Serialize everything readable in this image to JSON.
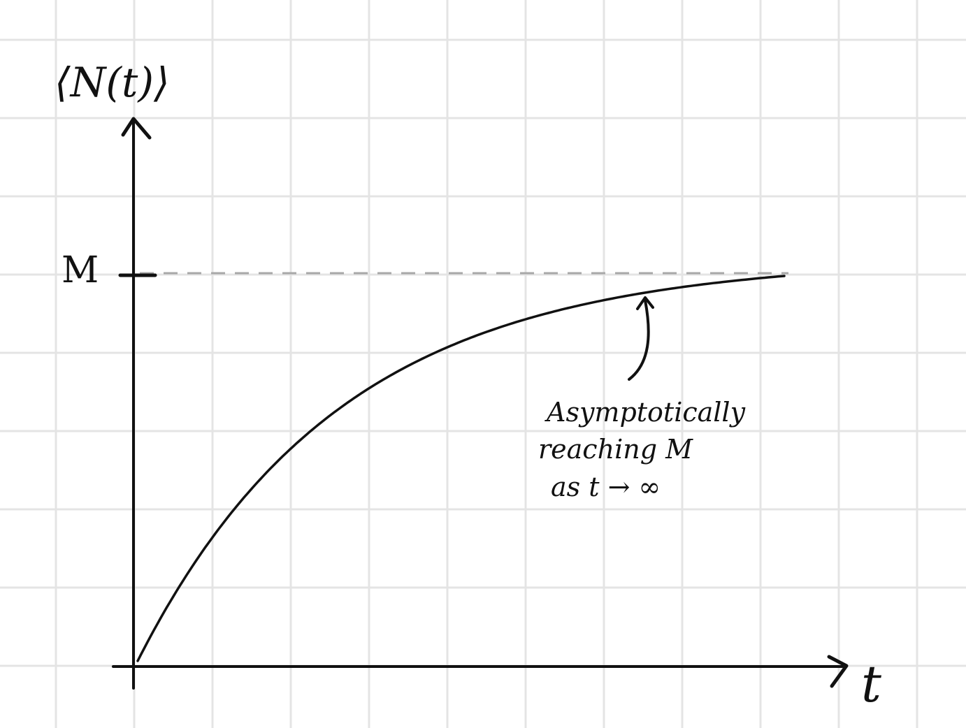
{
  "axes": {
    "y_label": "⟨N(t)⟩",
    "x_label": "t",
    "asymptote_label": "M"
  },
  "annotation": {
    "line1": "Asymptotically",
    "line2": "reaching M",
    "line3": "as t → ∞"
  },
  "colors": {
    "background": "#ffffff",
    "grid": "#e4e4e4",
    "ink": "#111111",
    "asymptote": "#a8a8a8"
  },
  "curve": {
    "shape": "saturating exponential",
    "start_value": 0,
    "limit": "M"
  }
}
